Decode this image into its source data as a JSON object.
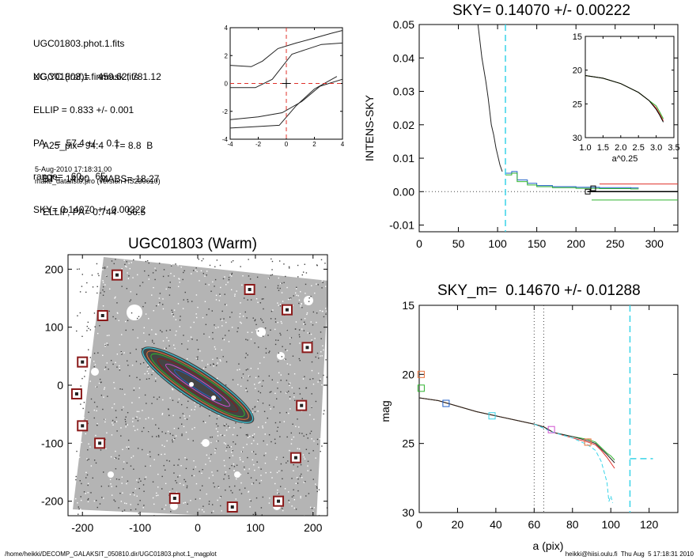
{
  "info": {
    "files": [
      "UGC01803.phot.1.fits",
      "UGC01803.1.finmask.fits"
    ],
    "params": [
      "XC,YC (iraf)=   459.62, 781.12",
      "ELLIP = 0.833 +/- 0.001",
      "PA    =  57.4 +/-   0.1",
      "range=   60.-   65.",
      "SKY= 0.14070 +/- 0.00222"
    ],
    "derived": [
      "A25_pix= 94.4    T= 8.8  B",
      "BT=  14.90    MABS=-18.27",
      "ELLIP, PA= 0.744    56.5"
    ],
    "timestamp": "5-Aug-2010 17:18:31.00",
    "program": "make_datalist0.pro (version HS230610)"
  },
  "footer": {
    "left": "/home/heikki/DECOMP_GALAKSIT_050810.dir/UGC01803.phot.1_magplot",
    "right": "heikki@hiisi.oulu.fi  Thu Aug  5 17:18:31 2010"
  },
  "colors": {
    "red": "#e0302a",
    "green": "#2fb32f",
    "blue": "#1f5fc8",
    "cyan": "#39d4e8",
    "orange": "#e8703a",
    "magenta": "#d050d0",
    "darkred": "#8b1a1a"
  },
  "chart_data": [
    {
      "id": "contour",
      "type": "line",
      "title": "",
      "xlim": [
        -4,
        4
      ],
      "ylim": [
        -4,
        4
      ],
      "xticks": [
        "-4",
        "-2",
        "0",
        "2",
        "4"
      ],
      "yticks": [
        "-4",
        "-2",
        "0",
        "2",
        "4"
      ],
      "series": [
        {
          "x": [
            -4,
            -2.2,
            -0.5,
            0.7,
            2.0,
            3.6
          ],
          "y": [
            -3.2,
            -3.1,
            -3.0,
            -1.6,
            -0.4,
            0.5
          ]
        },
        {
          "x": [
            -4,
            -2.0,
            -0.3,
            1.1,
            2.4,
            4.0
          ],
          "y": [
            -2.6,
            -2.4,
            -2.1,
            -1.3,
            -0.2,
            0.3
          ]
        },
        {
          "x": [
            -4,
            -2.2,
            -1.0,
            0.4,
            1.3,
            2.5,
            4.0
          ],
          "y": [
            -0.3,
            -0.3,
            0.3,
            2.1,
            2.4,
            2.8,
            2.9
          ]
        },
        {
          "x": [
            -4,
            -2.5,
            -1.7,
            -0.6,
            0.7,
            1.8,
            3.2,
            4.0
          ],
          "y": [
            1.3,
            1.2,
            1.6,
            2.5,
            2.9,
            3.2,
            3.6,
            3.8
          ]
        }
      ]
    },
    {
      "id": "sky",
      "type": "line",
      "title": "SKY= 0.14070 +/- 0.00222",
      "ylabel": "INTENS-SKY",
      "xlim": [
        0,
        330
      ],
      "ylim": [
        -0.012,
        0.05
      ],
      "xticks": [
        "0",
        "50",
        "100",
        "150",
        "200",
        "250",
        "300"
      ],
      "yticks": [
        "-0.01",
        "0.00",
        "0.01",
        "0.02",
        "0.03",
        "0.04",
        "0.05"
      ],
      "sky_line_x": 110,
      "series": [
        {
          "name": "profile",
          "x": [
            75,
            80,
            85,
            88,
            90,
            92,
            95,
            98,
            100,
            103,
            106
          ],
          "y": [
            0.05,
            0.04,
            0.033,
            0.028,
            0.024,
            0.02,
            0.017,
            0.013,
            0.011,
            0.008,
            0.006
          ]
        },
        {
          "name": "steps_blue",
          "x": [
            110,
            118,
            125,
            138,
            150,
            170,
            200,
            230,
            270
          ],
          "y": [
            0.0055,
            0.006,
            0.0035,
            0.0025,
            0.0018,
            0.0015,
            0.0013,
            0.0012,
            0.0011
          ]
        },
        {
          "name": "steps_green",
          "x": [
            110,
            118,
            125,
            138,
            150,
            170,
            200,
            230,
            270
          ],
          "y": [
            0.005,
            0.0055,
            0.003,
            0.002,
            0.0015,
            0.0012,
            0.001,
            0.0009,
            0.0008
          ]
        },
        {
          "name": "red_line",
          "x": [
            230,
            330
          ],
          "y": [
            0.0023,
            0.0023
          ]
        },
        {
          "name": "black_line",
          "x": [
            215,
            330
          ],
          "y": [
            0.0,
            0.0
          ]
        },
        {
          "name": "green_line",
          "x": [
            220,
            330
          ],
          "y": [
            -0.0025,
            -0.0025
          ]
        }
      ],
      "inset": {
        "xlabel": "a^0.25",
        "xlim": [
          1.0,
          3.5
        ],
        "ylim": [
          15,
          30
        ],
        "xticks": [
          "1.0",
          "1.5",
          "2.0",
          "2.5",
          "3.0",
          "3.5"
        ],
        "yticks": [
          "15",
          "20",
          "25",
          "30"
        ],
        "x": [
          1.0,
          1.5,
          2.0,
          2.5,
          2.8,
          3.0,
          3.1,
          3.2
        ],
        "y": [
          20.8,
          21.2,
          22.0,
          23.3,
          24.5,
          25.6,
          26.5,
          27.5
        ]
      }
    },
    {
      "id": "image",
      "type": "scatter",
      "title": "UGC01803 (Warm)",
      "xlim": [
        -225,
        225
      ],
      "ylim": [
        -225,
        225
      ],
      "xticks": [
        "-200",
        "-100",
        "0",
        "100",
        "200"
      ],
      "yticks": [
        "-200",
        "-100",
        "0",
        "100",
        "200"
      ],
      "stars_x": [
        -140,
        -165,
        -200,
        -210,
        -200,
        -170,
        -40,
        60,
        90,
        155,
        190,
        180,
        170,
        140
      ],
      "stars_y": [
        190,
        120,
        40,
        -15,
        -70,
        -100,
        -195,
        -210,
        165,
        130,
        65,
        -35,
        -125,
        -200
      ]
    },
    {
      "id": "mag",
      "type": "line",
      "title": "SKY_m=  0.14670 +/- 0.01288",
      "xlabel": "a (pix)",
      "ylabel": "mag",
      "xlim": [
        0,
        135
      ],
      "ylim": [
        15,
        30
      ],
      "xticks": [
        "0",
        "20",
        "40",
        "60",
        "80",
        "100",
        "120"
      ],
      "yticks": [
        "15",
        "20",
        "25",
        "30"
      ],
      "vlines_dotted": [
        60,
        65
      ],
      "sky_x": 110,
      "series": [
        {
          "name": "green",
          "x": [
            0,
            10,
            20,
            30,
            40,
            50,
            60,
            65,
            70,
            80,
            88,
            92,
            95,
            98,
            100,
            102
          ],
          "y": [
            21.7,
            21.9,
            22.3,
            22.7,
            23.0,
            23.3,
            23.6,
            23.8,
            24.2,
            24.5,
            24.7,
            24.9,
            25.3,
            25.7,
            25.9,
            26.2
          ]
        },
        {
          "name": "red",
          "x": [
            0,
            10,
            20,
            30,
            40,
            50,
            60,
            65,
            70,
            80,
            88,
            92,
            95,
            98,
            100,
            102
          ],
          "y": [
            21.7,
            21.9,
            22.3,
            22.7,
            23.0,
            23.3,
            23.6,
            23.8,
            24.2,
            24.6,
            24.9,
            25.1,
            25.5,
            26.0,
            26.4,
            26.8
          ]
        },
        {
          "name": "black",
          "x": [
            0,
            10,
            20,
            30,
            40,
            50,
            60,
            65,
            70,
            80,
            88,
            92,
            95,
            98,
            100,
            102
          ],
          "y": [
            21.7,
            21.9,
            22.3,
            22.7,
            23.0,
            23.3,
            23.6,
            23.8,
            24.2,
            24.5,
            24.8,
            25.0,
            25.4,
            25.8,
            26.1,
            26.4
          ]
        },
        {
          "name": "cyan",
          "x": [
            60,
            70,
            80,
            88,
            92,
            95,
            98,
            99,
            100,
            101
          ],
          "y": [
            23.6,
            24.2,
            24.6,
            25.1,
            25.5,
            26.3,
            27.8,
            29.2,
            28.8,
            29.3
          ]
        }
      ],
      "boxes": [
        {
          "x": 1,
          "y": 20.0,
          "c": "orange"
        },
        {
          "x": 1,
          "y": 21.0,
          "c": "green"
        },
        {
          "x": 14,
          "y": 22.1,
          "c": "blue"
        },
        {
          "x": 38,
          "y": 23.0,
          "c": "cyan"
        },
        {
          "x": 69,
          "y": 24.0,
          "c": "magenta"
        },
        {
          "x": 88,
          "y": 24.9,
          "c": "orange"
        }
      ],
      "sky_mag": 26.1
    }
  ]
}
